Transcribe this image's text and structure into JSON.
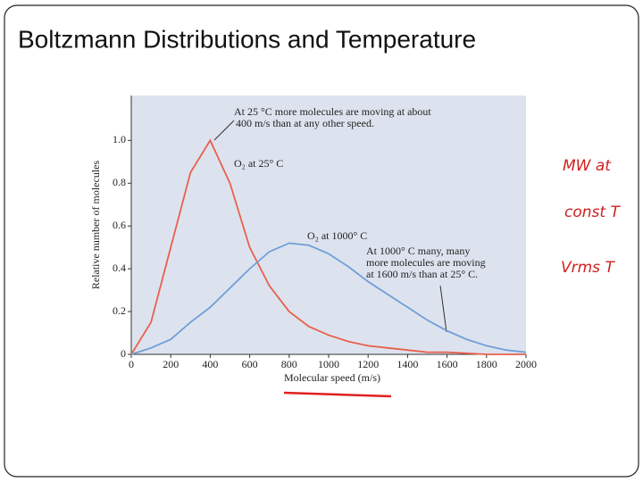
{
  "chart_data": {
    "type": "line",
    "title": "Boltzmann Distributions and Temperature",
    "x_label": "Molecular speed (m/s)",
    "y_label": "Relative number of molecules",
    "x": [
      0,
      100,
      200,
      300,
      400,
      500,
      600,
      700,
      800,
      900,
      1000,
      1100,
      1200,
      1300,
      1400,
      1500,
      1600,
      1700,
      1800,
      1900,
      2000
    ],
    "series": [
      {
        "name": "O₂ at 25° C",
        "color": "#e8604c",
        "values": [
          0,
          0.15,
          0.5,
          0.85,
          1.0,
          0.8,
          0.5,
          0.32,
          0.2,
          0.13,
          0.09,
          0.06,
          0.04,
          0.03,
          0.02,
          0.01,
          0.01,
          0.005,
          0,
          0,
          0
        ]
      },
      {
        "name": "O₂ at 1000° C",
        "color": "#6f9fd8",
        "values": [
          0,
          0.03,
          0.07,
          0.15,
          0.22,
          0.31,
          0.4,
          0.48,
          0.52,
          0.51,
          0.47,
          0.41,
          0.34,
          0.28,
          0.22,
          0.16,
          0.11,
          0.07,
          0.04,
          0.02,
          0.01
        ]
      }
    ],
    "xlim": [
      0,
      2000
    ],
    "xticks": [
      0,
      200,
      400,
      600,
      800,
      1000,
      1200,
      1400,
      1600,
      1800,
      2000
    ],
    "ylim": [
      0,
      1.21
    ],
    "yticks": [
      0,
      0.2,
      0.4,
      0.6,
      0.8,
      {
        "value": 1,
        "label": "1.0"
      }
    ],
    "annotations": [
      [
        "At 25 °C more molecules are moving at about",
        "400 m/s than at any other speed."
      ],
      [
        "At 1000° C many, many",
        "more molecules are moving",
        "at 1600 m/s than at 25° C."
      ]
    ],
    "handwritten_notes": [
      "MW at",
      "const T",
      "Vrms T"
    ]
  }
}
